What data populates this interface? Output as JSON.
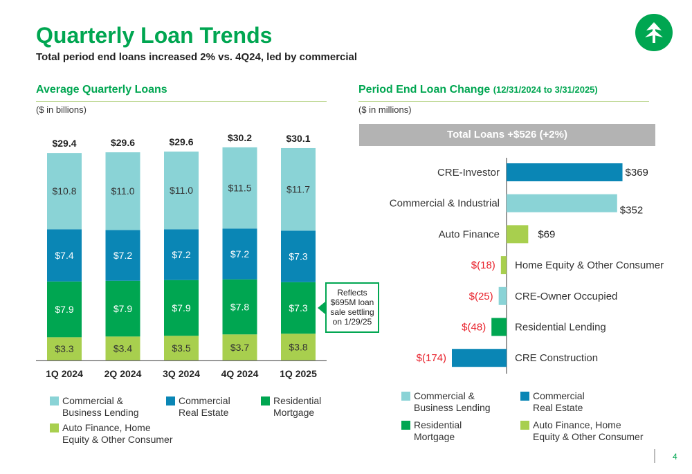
{
  "header": {
    "title": "Quarterly Loan Trends",
    "subtitle": "Total period end loans increased 2% vs. 4Q24, led by commercial"
  },
  "left": {
    "title": "Average Quarterly Loans",
    "unit": "($ in billions)"
  },
  "right": {
    "title": "Period End Loan Change",
    "title_paren": "(12/31/2024 to 3/31/2025)",
    "unit": "($ in millions)",
    "banner": "Total Loans +$526 (+2%)"
  },
  "callout": [
    "Reflects",
    "$695M loan",
    "sale settling",
    "on 1/29/25"
  ],
  "legend_left": [
    {
      "label": "Commercial & Business Lending",
      "lines": [
        "Commercial &",
        "Business Lending"
      ],
      "color": "#8ad3d6"
    },
    {
      "label": "Commercial Real Estate",
      "lines": [
        "Commercial",
        "Real Estate"
      ],
      "color": "#0a86b5"
    },
    {
      "label": "Residential Mortgage",
      "lines": [
        "Residential",
        "Mortgage"
      ],
      "color": "#00a651"
    },
    {
      "label": "Auto Finance, Home Equity & Other Consumer",
      "lines": [
        "Auto Finance, Home",
        "Equity & Other Consumer"
      ],
      "color": "#a8cf4e"
    }
  ],
  "legend_right": [
    {
      "lines": [
        "Commercial &",
        "Business Lending"
      ],
      "color": "#8ad3d6"
    },
    {
      "lines": [
        "Commercial",
        "Real Estate"
      ],
      "color": "#0a86b5"
    },
    {
      "lines": [
        "Residential",
        "Mortgage"
      ],
      "color": "#00a651"
    },
    {
      "lines": [
        "Auto Finance, Home",
        "Equity & Other Consumer"
      ],
      "color": "#a8cf4e"
    }
  ],
  "page_number": "4",
  "chart_data": [
    {
      "type": "bar",
      "stacked": true,
      "categories": [
        "1Q 2024",
        "2Q 2024",
        "3Q 2024",
        "4Q 2024",
        "1Q 2025"
      ],
      "totals": [
        "$29.4",
        "$29.6",
        "$29.6",
        "$30.2",
        "$30.1"
      ],
      "series": [
        {
          "name": "Auto Finance, Home Equity & Other Consumer",
          "color": "#a8cf4e",
          "values": [
            3.3,
            3.4,
            3.5,
            3.7,
            3.8
          ],
          "labels": [
            "$3.3",
            "$3.4",
            "$3.5",
            "$3.7",
            "$3.8"
          ]
        },
        {
          "name": "Residential Mortgage",
          "color": "#00a651",
          "values": [
            7.9,
            7.9,
            7.9,
            7.8,
            7.3
          ],
          "labels": [
            "$7.9",
            "$7.9",
            "$7.9",
            "$7.8",
            "$7.3"
          ]
        },
        {
          "name": "Commercial Real Estate",
          "color": "#0a86b5",
          "values": [
            7.4,
            7.2,
            7.2,
            7.2,
            7.3
          ],
          "labels": [
            "$7.4",
            "$7.2",
            "$7.2",
            "$7.2",
            "$7.3"
          ]
        },
        {
          "name": "Commercial & Business Lending",
          "color": "#8ad3d6",
          "values": [
            10.8,
            11.0,
            11.0,
            11.5,
            11.7
          ],
          "labels": [
            "$10.8",
            "$11.0",
            "$11.0",
            "$11.5",
            "$11.7"
          ]
        }
      ]
    },
    {
      "type": "bar",
      "orientation": "horizontal",
      "categories": [
        "CRE-Investor",
        "Commercial & Industrial",
        "Auto Finance",
        "Home Equity & Other Consumer",
        "CRE-Owner Occupied",
        "Residential Lending",
        "CRE Construction"
      ],
      "values": [
        369,
        352,
        69,
        -18,
        -25,
        -48,
        -174
      ],
      "labels": [
        "$369",
        "$352",
        "$69",
        "$(18)",
        "$(25)",
        "$(48)",
        "$(174)"
      ],
      "colors": [
        "#0a86b5",
        "#8ad3d6",
        "#a8cf4e",
        "#a8cf4e",
        "#8ad3d6",
        "#00a651",
        "#0a86b5"
      ],
      "negative_label_color": "#e8202a"
    }
  ]
}
